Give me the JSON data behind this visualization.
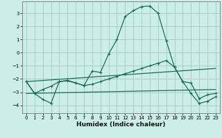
{
  "xlabel": "Humidex (Indice chaleur)",
  "bg_color": "#cceee8",
  "grid_color": "#aacccc",
  "line_color": "#1a6b5a",
  "xlim": [
    -0.5,
    23.5
  ],
  "ylim": [
    -4.6,
    3.9
  ],
  "yticks": [
    -4,
    -3,
    -2,
    -1,
    0,
    1,
    2,
    3
  ],
  "xticks": [
    0,
    1,
    2,
    3,
    4,
    5,
    6,
    7,
    8,
    9,
    10,
    11,
    12,
    13,
    14,
    15,
    16,
    17,
    18,
    19,
    20,
    21,
    22,
    23
  ],
  "line1_x": [
    0,
    1,
    2,
    3,
    4,
    5,
    6,
    7,
    8,
    9,
    10,
    11,
    12,
    13,
    14,
    15,
    16,
    17,
    18,
    19,
    20,
    21,
    22,
    23
  ],
  "line1_y": [
    -2.2,
    -3.1,
    -3.55,
    -3.85,
    -2.2,
    -2.1,
    -2.3,
    -2.5,
    -1.4,
    -1.5,
    -0.1,
    1.0,
    2.75,
    3.2,
    3.5,
    3.55,
    3.0,
    0.9,
    -1.1,
    -2.2,
    -3.1,
    -3.85,
    -3.7,
    -3.35
  ],
  "line2_x": [
    0,
    1,
    2,
    3,
    4,
    5,
    6,
    7,
    8,
    9,
    10,
    11,
    12,
    13,
    14,
    15,
    16,
    17,
    18,
    19,
    20,
    21,
    22,
    23
  ],
  "line2_y": [
    -2.2,
    -3.1,
    -2.8,
    -2.55,
    -2.2,
    -2.15,
    -2.3,
    -2.5,
    -2.4,
    -2.2,
    -2.0,
    -1.8,
    -1.6,
    -1.4,
    -1.2,
    -1.0,
    -0.8,
    -0.6,
    -1.1,
    -2.2,
    -2.3,
    -3.5,
    -3.2,
    -3.1
  ],
  "line3_x": [
    0,
    23
  ],
  "line3_y": [
    -2.2,
    -1.2
  ],
  "line4_x": [
    0,
    23
  ],
  "line4_y": [
    -3.1,
    -2.8
  ]
}
